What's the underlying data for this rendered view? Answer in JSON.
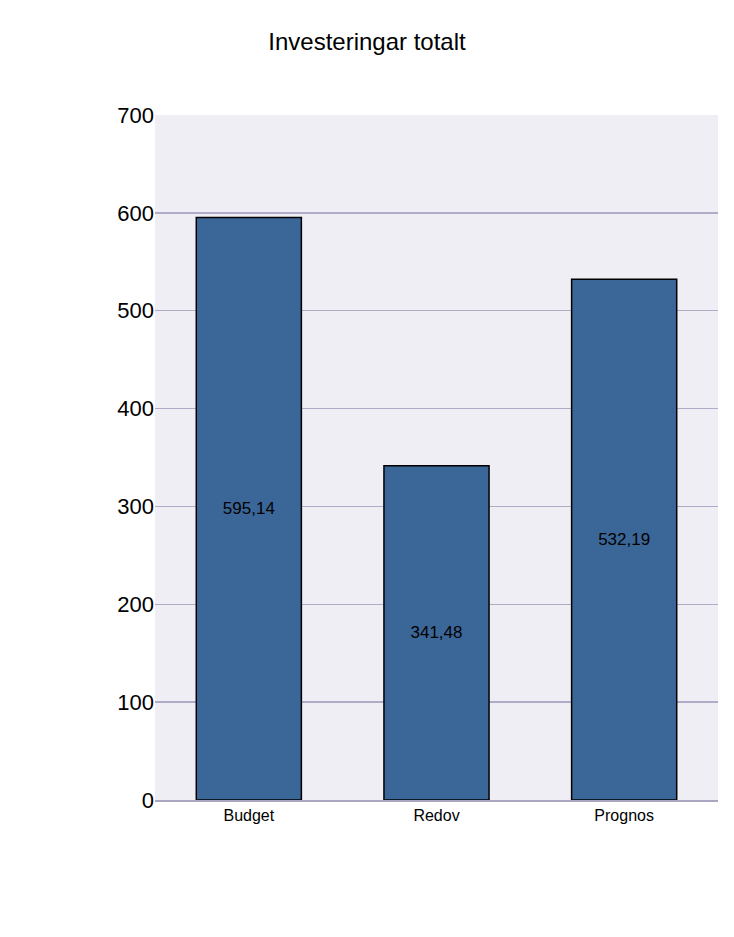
{
  "chart_data": {
    "type": "bar",
    "title": "Investeringar totalt",
    "categories": [
      "Budget",
      "Redov",
      "Prognos"
    ],
    "values": [
      595.14,
      341.48,
      532.19
    ],
    "value_labels": [
      "595,14",
      "341,48",
      "532,19"
    ],
    "data_labels": true,
    "color": "#3b6698",
    "ylim": [
      0,
      700
    ],
    "yticks": [
      0,
      100,
      200,
      300,
      400,
      500,
      600,
      700
    ],
    "grid": true
  }
}
